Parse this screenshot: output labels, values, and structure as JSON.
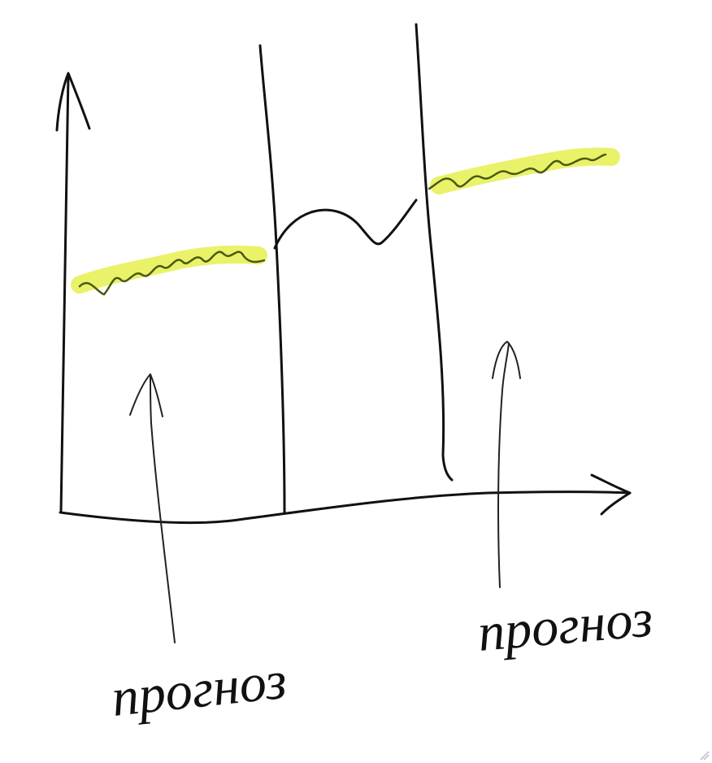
{
  "labels": [
    "прогноз",
    "прогноз"
  ]
}
